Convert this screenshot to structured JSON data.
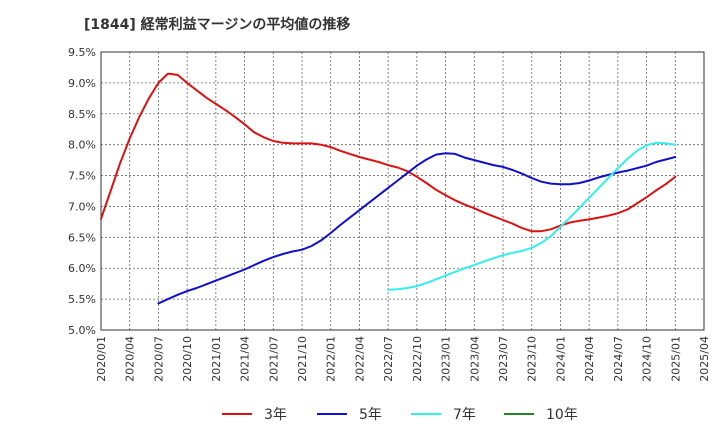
{
  "chart_data": {
    "type": "line",
    "title": "[1844]  経常利益マージンの平均値の推移",
    "xlabel": "",
    "ylabel": "",
    "x_ticks": [
      "2020/01",
      "2020/04",
      "2020/07",
      "2020/10",
      "2021/01",
      "2021/04",
      "2021/07",
      "2021/10",
      "2022/01",
      "2022/04",
      "2022/07",
      "2022/10",
      "2023/01",
      "2023/04",
      "2023/07",
      "2023/10",
      "2024/01",
      "2024/04",
      "2024/07",
      "2024/10",
      "2025/01",
      "2025/04"
    ],
    "y_ticks": [
      "9.5%",
      "9.0%",
      "8.5%",
      "8.0%",
      "7.5%",
      "7.0%",
      "6.5%",
      "6.0%",
      "5.5%",
      "5.0%"
    ],
    "ylim": [
      5.0,
      9.5
    ],
    "grid": true,
    "legend_position": "bottom",
    "series": [
      {
        "name": "3年",
        "color": "#dd1111",
        "x": [
          "2020/01",
          "2020/02",
          "2020/03",
          "2020/04",
          "2020/05",
          "2020/06",
          "2020/07",
          "2020/08",
          "2020/09",
          "2020/10",
          "2020/11",
          "2020/12",
          "2021/01",
          "2021/02",
          "2021/03",
          "2021/04",
          "2021/05",
          "2021/06",
          "2021/07",
          "2021/08",
          "2021/09",
          "2021/10",
          "2021/11",
          "2021/12",
          "2022/01",
          "2022/02",
          "2022/03",
          "2022/04",
          "2022/05",
          "2022/06",
          "2022/07",
          "2022/08",
          "2022/09",
          "2022/10",
          "2022/11",
          "2022/12",
          "2023/01",
          "2023/02",
          "2023/03",
          "2023/04",
          "2023/05",
          "2023/06",
          "2023/07",
          "2023/08",
          "2023/09",
          "2023/10",
          "2023/11",
          "2023/12",
          "2024/01",
          "2024/02",
          "2024/03",
          "2024/04",
          "2024/05",
          "2024/06",
          "2024/07",
          "2024/08",
          "2024/09",
          "2024/10",
          "2024/11",
          "2024/12",
          "2025/01"
        ],
        "values": [
          6.8,
          7.25,
          7.7,
          8.1,
          8.45,
          8.75,
          9.0,
          9.15,
          9.13,
          9.0,
          8.88,
          8.76,
          8.66,
          8.56,
          8.45,
          8.33,
          8.2,
          8.12,
          8.06,
          8.03,
          8.02,
          8.02,
          8.02,
          8.0,
          7.96,
          7.9,
          7.85,
          7.8,
          7.76,
          7.72,
          7.67,
          7.63,
          7.57,
          7.48,
          7.38,
          7.27,
          7.18,
          7.1,
          7.03,
          6.97,
          6.9,
          6.84,
          6.78,
          6.72,
          6.65,
          6.6,
          6.6,
          6.63,
          6.69,
          6.74,
          6.77,
          6.79,
          6.82,
          6.85,
          6.89,
          6.95,
          7.05,
          7.15,
          7.26,
          7.36,
          7.48
        ]
      },
      {
        "name": "5年",
        "color": "#1111cc",
        "x": [
          "2020/07",
          "2020/08",
          "2020/09",
          "2020/10",
          "2020/11",
          "2020/12",
          "2021/01",
          "2021/02",
          "2021/03",
          "2021/04",
          "2021/05",
          "2021/06",
          "2021/07",
          "2021/08",
          "2021/09",
          "2021/10",
          "2021/11",
          "2021/12",
          "2022/01",
          "2022/02",
          "2022/03",
          "2022/04",
          "2022/05",
          "2022/06",
          "2022/07",
          "2022/08",
          "2022/09",
          "2022/10",
          "2022/11",
          "2022/12",
          "2023/01",
          "2023/02",
          "2023/03",
          "2023/04",
          "2023/05",
          "2023/06",
          "2023/07",
          "2023/08",
          "2023/09",
          "2023/10",
          "2023/11",
          "2023/12",
          "2024/01",
          "2024/02",
          "2024/03",
          "2024/04",
          "2024/05",
          "2024/06",
          "2024/07",
          "2024/08",
          "2024/09",
          "2024/10",
          "2024/11",
          "2024/12",
          "2025/01"
        ],
        "values": [
          5.43,
          5.5,
          5.57,
          5.63,
          5.68,
          5.74,
          5.8,
          5.86,
          5.92,
          5.98,
          6.05,
          6.12,
          6.18,
          6.23,
          6.27,
          6.3,
          6.36,
          6.45,
          6.57,
          6.7,
          6.82,
          6.94,
          7.06,
          7.18,
          7.3,
          7.42,
          7.54,
          7.66,
          7.76,
          7.84,
          7.86,
          7.85,
          7.79,
          7.75,
          7.71,
          7.67,
          7.64,
          7.59,
          7.53,
          7.46,
          7.4,
          7.37,
          7.36,
          7.36,
          7.38,
          7.42,
          7.47,
          7.51,
          7.55,
          7.58,
          7.62,
          7.66,
          7.72,
          7.76,
          7.8
        ]
      },
      {
        "name": "7年",
        "color": "#33eeee",
        "x": [
          "2022/07",
          "2022/08",
          "2022/09",
          "2022/10",
          "2022/11",
          "2022/12",
          "2023/01",
          "2023/02",
          "2023/03",
          "2023/04",
          "2023/05",
          "2023/06",
          "2023/07",
          "2023/08",
          "2023/09",
          "2023/10",
          "2023/11",
          "2023/12",
          "2024/01",
          "2024/02",
          "2024/03",
          "2024/04",
          "2024/05",
          "2024/06",
          "2024/07",
          "2024/08",
          "2024/09",
          "2024/10",
          "2024/11",
          "2024/12",
          "2025/01"
        ],
        "values": [
          5.65,
          5.66,
          5.68,
          5.71,
          5.76,
          5.82,
          5.88,
          5.94,
          6.0,
          6.05,
          6.11,
          6.16,
          6.21,
          6.25,
          6.28,
          6.33,
          6.41,
          6.52,
          6.67,
          6.82,
          6.98,
          7.14,
          7.3,
          7.46,
          7.62,
          7.77,
          7.9,
          7.99,
          8.03,
          8.02,
          8.0
        ]
      },
      {
        "name": "10年",
        "color": "#228822",
        "x": [],
        "values": []
      }
    ]
  }
}
